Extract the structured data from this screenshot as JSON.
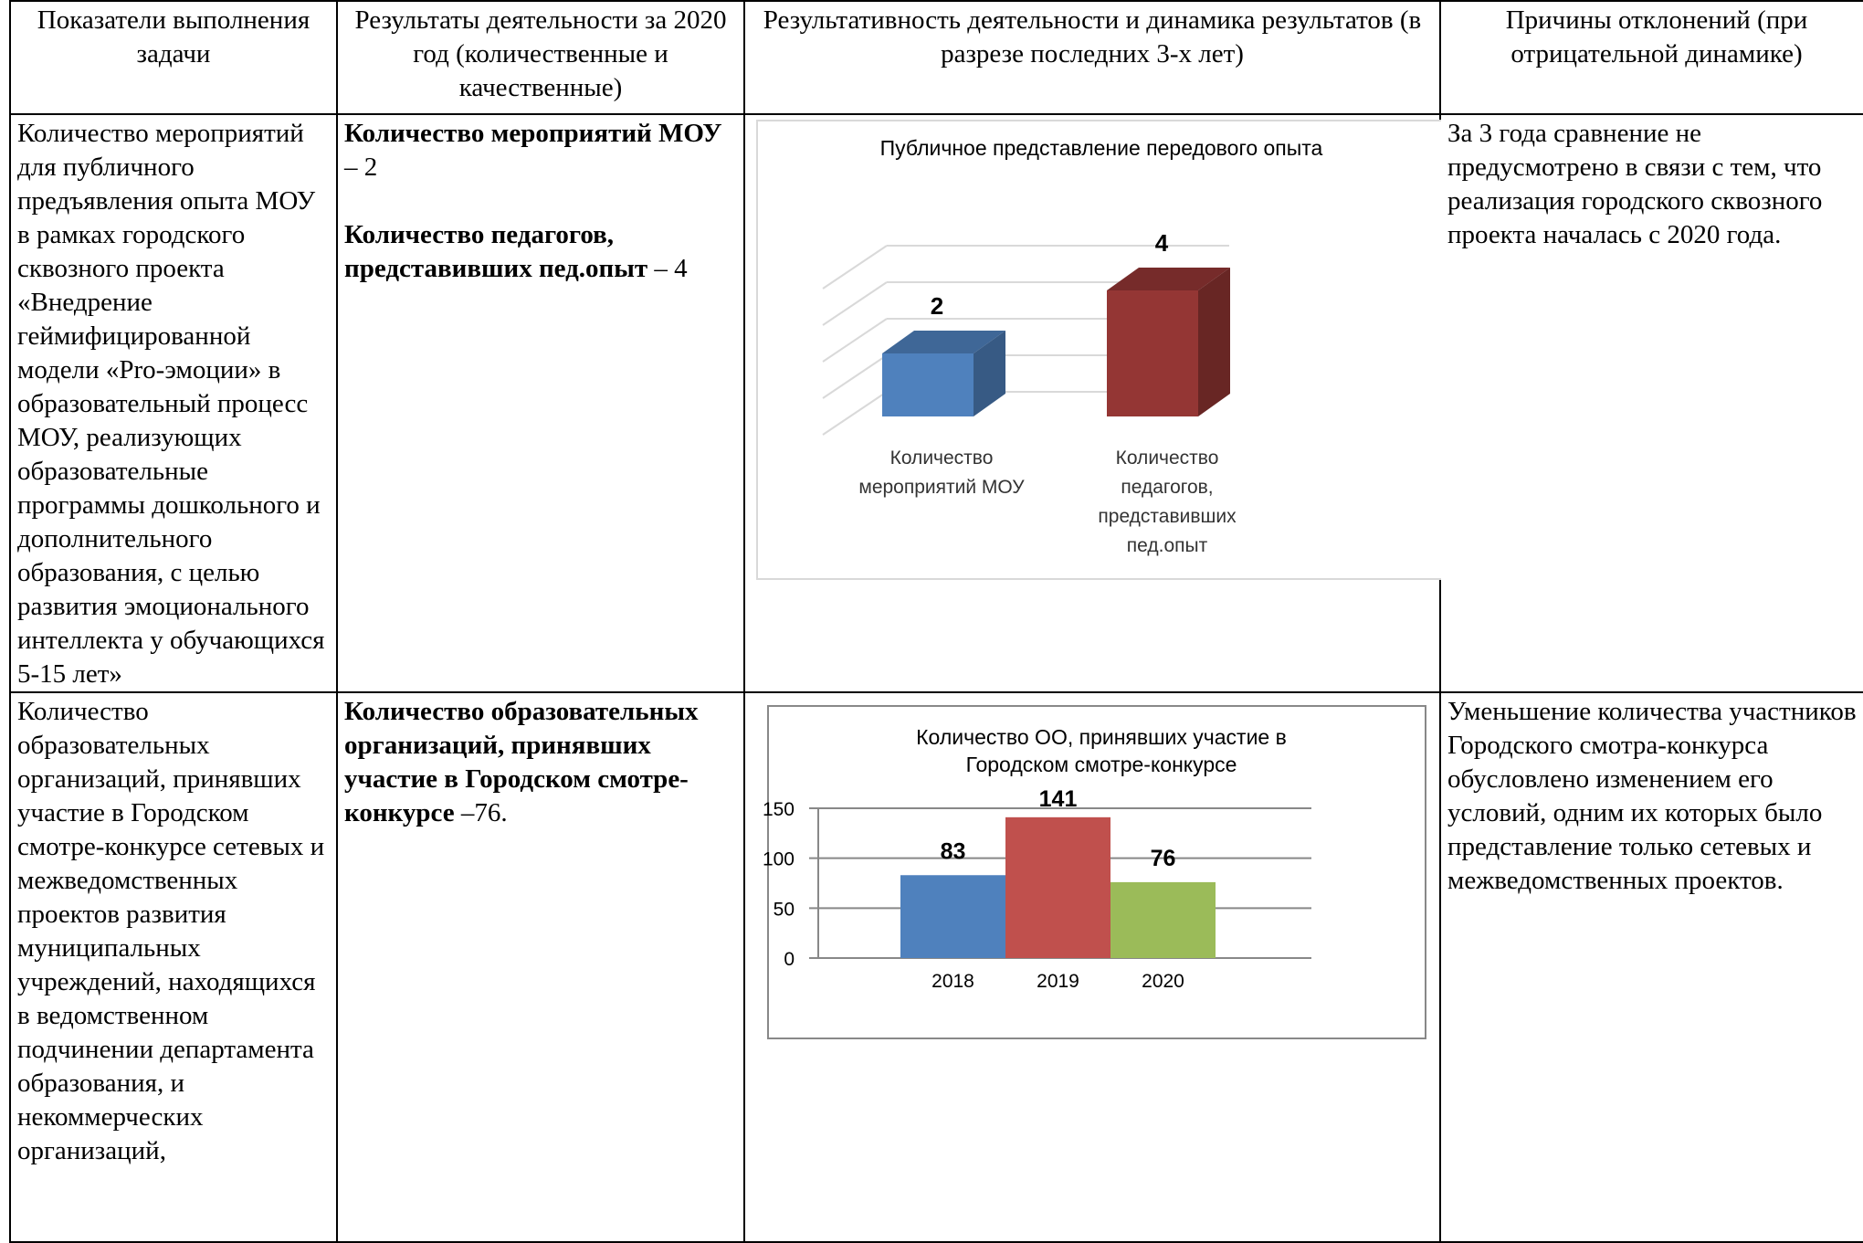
{
  "headers": [
    "Показатели выполнения задачи",
    "Результаты деятельности за 2020 год (количественные и качественные)",
    "Результативность деятельности и динамика результатов (в разрезе последних 3-х лет)",
    "Причины отклонений (при отрицательной динамике)"
  ],
  "row1": {
    "task": "Количество мероприятий для публичного предъявления опыта МОУ в рамках городского сквозного проекта «Внедрение геймифицированной модели «Pro-эмоции» в образовательный процесс МОУ, реализующих образовательные программы дошкольного и дополнительного образования, с целью развития эмоционального интеллекта у обучающихся 5-15 лет»",
    "result_1_bold": "Количество мероприятий МОУ",
    "result_1_value": " – 2",
    "result_2_bold": "Количество педагогов, представивших пед.опыт",
    "result_2_value": " – 4",
    "reason": "За 3 года сравнение не предусмотрено в связи с тем, что реализация городского сквозного проекта началась с 2020 года."
  },
  "row2": {
    "task": "Количество образовательных организаций, принявших участие в Городском смотре-конкурсе сетевых и межведомственных проектов развития муниципальных учреждений, находящихся в ведомственном подчинении департамента образования, и некоммерческих организаций,",
    "result_bold": "Количество образовательных организаций, принявших участие в Городском смотре-конкурсе",
    "result_value": " –76.",
    "reason": "Уменьшение количества участников Городского смотра-конкурса обусловлено изменением его условий, одним их которых было представление только сетевых и межведомственных проектов."
  },
  "chart_data": [
    {
      "type": "bar",
      "title": "Публичное представление передового опыта",
      "categories": [
        "Количество мероприятий МОУ",
        "Количество педагогов, представивших пед.опыт"
      ],
      "values": [
        2,
        4
      ],
      "colors": [
        "#4F81BD",
        "#943634"
      ],
      "style": "3d",
      "grid": true
    },
    {
      "type": "bar",
      "title": "Количество ОО, принявших участие в Городском смотре-конкурсе",
      "categories": [
        "2018",
        "2019",
        "2020"
      ],
      "values": [
        83,
        141,
        76
      ],
      "colors": [
        "#4F81BD",
        "#C0504D",
        "#9BBB59"
      ],
      "yticks": [
        0,
        50,
        100,
        150
      ],
      "ylim": [
        0,
        150
      ],
      "grid": true
    }
  ]
}
